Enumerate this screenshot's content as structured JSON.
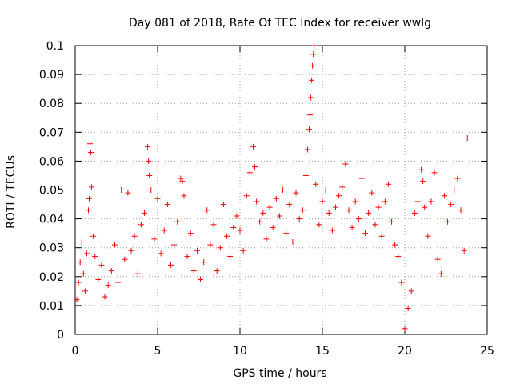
{
  "chart_data": {
    "type": "scatter",
    "title": "Day 081 of 2018, Rate Of TEC Index for receiver wwlg",
    "xlabel": "GPS time / hours",
    "ylabel": "ROTI / TECUs",
    "xlim": [
      0,
      25
    ],
    "ylim": [
      0,
      0.1
    ],
    "xticks": [
      "0",
      "5",
      "10",
      "15",
      "20",
      "25"
    ],
    "xtick_values": [
      0,
      5,
      10,
      15,
      20,
      25
    ],
    "yticks": [
      "0",
      "0.01",
      "0.02",
      "0.03",
      "0.04",
      "0.05",
      "0.06",
      "0.07",
      "0.08",
      "0.09",
      "0.1"
    ],
    "ytick_values": [
      0,
      0.01,
      0.02,
      0.03,
      0.04,
      0.05,
      0.06,
      0.07,
      0.08,
      0.09,
      0.1
    ],
    "grid": true,
    "marker": "+",
    "color": "#ff0000",
    "series": [
      {
        "name": "ROTI",
        "points": [
          [
            0.1,
            0.012
          ],
          [
            0.2,
            0.018
          ],
          [
            0.3,
            0.025
          ],
          [
            0.4,
            0.032
          ],
          [
            0.5,
            0.021
          ],
          [
            0.6,
            0.015
          ],
          [
            0.7,
            0.028
          ],
          [
            0.8,
            0.043
          ],
          [
            0.85,
            0.047
          ],
          [
            0.9,
            0.066
          ],
          [
            0.95,
            0.063
          ],
          [
            1.0,
            0.051
          ],
          [
            1.1,
            0.034
          ],
          [
            1.2,
            0.027
          ],
          [
            1.4,
            0.019
          ],
          [
            1.6,
            0.024
          ],
          [
            1.8,
            0.013
          ],
          [
            2.0,
            0.017
          ],
          [
            2.2,
            0.022
          ],
          [
            2.4,
            0.031
          ],
          [
            2.6,
            0.018
          ],
          [
            2.8,
            0.05
          ],
          [
            3.0,
            0.026
          ],
          [
            3.2,
            0.049
          ],
          [
            3.4,
            0.029
          ],
          [
            3.6,
            0.034
          ],
          [
            3.8,
            0.021
          ],
          [
            4.0,
            0.038
          ],
          [
            4.2,
            0.042
          ],
          [
            4.4,
            0.065
          ],
          [
            4.45,
            0.06
          ],
          [
            4.5,
            0.055
          ],
          [
            4.6,
            0.05
          ],
          [
            4.8,
            0.033
          ],
          [
            5.0,
            0.047
          ],
          [
            5.2,
            0.028
          ],
          [
            5.4,
            0.036
          ],
          [
            5.6,
            0.045
          ],
          [
            5.8,
            0.024
          ],
          [
            6.0,
            0.031
          ],
          [
            6.2,
            0.039
          ],
          [
            6.4,
            0.054
          ],
          [
            6.5,
            0.053
          ],
          [
            6.6,
            0.048
          ],
          [
            6.8,
            0.027
          ],
          [
            7.0,
            0.035
          ],
          [
            7.2,
            0.022
          ],
          [
            7.4,
            0.029
          ],
          [
            7.6,
            0.019
          ],
          [
            7.8,
            0.025
          ],
          [
            8.0,
            0.043
          ],
          [
            8.2,
            0.031
          ],
          [
            8.4,
            0.038
          ],
          [
            8.6,
            0.022
          ],
          [
            8.8,
            0.03
          ],
          [
            9.0,
            0.045
          ],
          [
            9.2,
            0.034
          ],
          [
            9.4,
            0.027
          ],
          [
            9.6,
            0.037
          ],
          [
            9.8,
            0.041
          ],
          [
            10.0,
            0.036
          ],
          [
            10.2,
            0.029
          ],
          [
            10.4,
            0.048
          ],
          [
            10.6,
            0.056
          ],
          [
            10.8,
            0.065
          ],
          [
            10.9,
            0.058
          ],
          [
            11.0,
            0.046
          ],
          [
            11.2,
            0.039
          ],
          [
            11.4,
            0.042
          ],
          [
            11.6,
            0.033
          ],
          [
            11.8,
            0.044
          ],
          [
            12.0,
            0.037
          ],
          [
            12.2,
            0.047
          ],
          [
            12.4,
            0.041
          ],
          [
            12.6,
            0.05
          ],
          [
            12.8,
            0.035
          ],
          [
            13.0,
            0.045
          ],
          [
            13.2,
            0.032
          ],
          [
            13.4,
            0.049
          ],
          [
            13.6,
            0.04
          ],
          [
            13.8,
            0.043
          ],
          [
            14.0,
            0.055
          ],
          [
            14.1,
            0.064
          ],
          [
            14.2,
            0.071
          ],
          [
            14.25,
            0.076
          ],
          [
            14.3,
            0.082
          ],
          [
            14.35,
            0.088
          ],
          [
            14.4,
            0.093
          ],
          [
            14.45,
            0.097
          ],
          [
            14.5,
            0.1
          ],
          [
            14.6,
            0.052
          ],
          [
            14.8,
            0.038
          ],
          [
            15.0,
            0.046
          ],
          [
            15.2,
            0.05
          ],
          [
            15.4,
            0.042
          ],
          [
            15.6,
            0.036
          ],
          [
            15.8,
            0.044
          ],
          [
            16.0,
            0.048
          ],
          [
            16.2,
            0.051
          ],
          [
            16.4,
            0.059
          ],
          [
            16.6,
            0.043
          ],
          [
            16.8,
            0.037
          ],
          [
            17.0,
            0.046
          ],
          [
            17.2,
            0.04
          ],
          [
            17.4,
            0.054
          ],
          [
            17.6,
            0.035
          ],
          [
            17.8,
            0.042
          ],
          [
            18.0,
            0.049
          ],
          [
            18.2,
            0.038
          ],
          [
            18.4,
            0.044
          ],
          [
            18.6,
            0.034
          ],
          [
            18.8,
            0.046
          ],
          [
            19.0,
            0.052
          ],
          [
            19.2,
            0.039
          ],
          [
            19.4,
            0.031
          ],
          [
            19.6,
            0.027
          ],
          [
            19.8,
            0.018
          ],
          [
            20.0,
            0.002
          ],
          [
            20.2,
            0.009
          ],
          [
            20.4,
            0.015
          ],
          [
            20.6,
            0.042
          ],
          [
            20.8,
            0.046
          ],
          [
            21.0,
            0.057
          ],
          [
            21.1,
            0.053
          ],
          [
            21.2,
            0.044
          ],
          [
            21.4,
            0.034
          ],
          [
            21.6,
            0.046
          ],
          [
            21.8,
            0.056
          ],
          [
            22.0,
            0.026
          ],
          [
            22.2,
            0.021
          ],
          [
            22.4,
            0.048
          ],
          [
            22.6,
            0.039
          ],
          [
            22.8,
            0.045
          ],
          [
            23.0,
            0.05
          ],
          [
            23.2,
            0.054
          ],
          [
            23.4,
            0.043
          ],
          [
            23.6,
            0.029
          ],
          [
            23.8,
            0.068
          ]
        ]
      }
    ]
  }
}
